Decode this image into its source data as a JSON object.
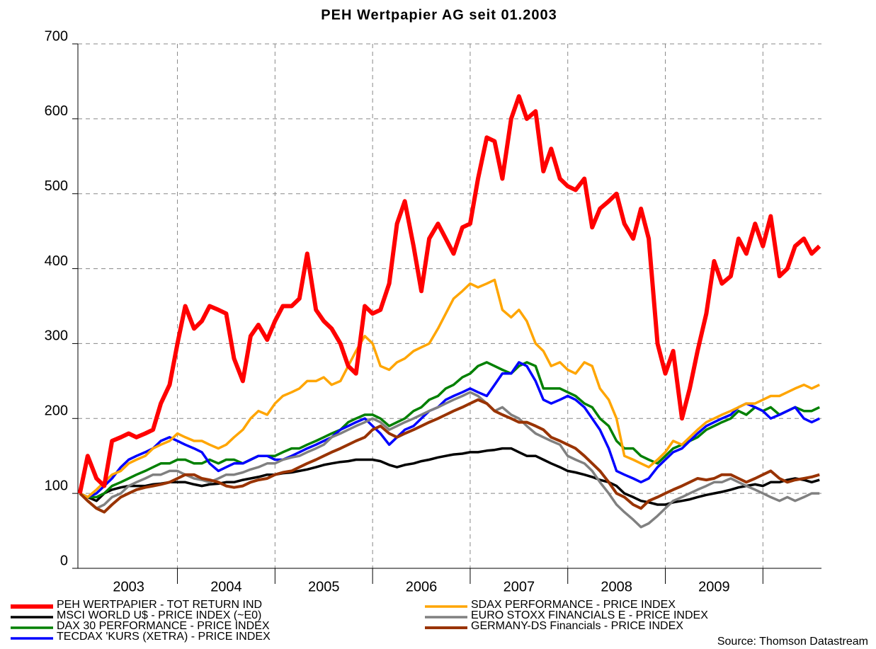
{
  "chart_data": {
    "type": "line",
    "title": "PEH Wertpapier AG seit 01.2003",
    "source": "Source: Thomson Datastream",
    "xlim": [
      2002.98,
      2010.6
    ],
    "xticks": [
      {
        "value": 2003.5,
        "label": "2003"
      },
      {
        "value": 2004.5,
        "label": "2004"
      },
      {
        "value": 2005.5,
        "label": "2005"
      },
      {
        "value": 2006.5,
        "label": "2006"
      },
      {
        "value": 2007.5,
        "label": "2007"
      },
      {
        "value": 2008.5,
        "label": "2008"
      },
      {
        "value": 2009.5,
        "label": "2009"
      }
    ],
    "xgrid": [
      2004,
      2005,
      2006,
      2007,
      2008,
      2009,
      2010
    ],
    "ylim": [
      0,
      700
    ],
    "yticks": [
      0,
      100,
      200,
      300,
      400,
      500,
      600,
      700
    ],
    "grid": true,
    "x": [
      2003,
      2003.08,
      2003.17,
      2003.25,
      2003.33,
      2003.42,
      2003.5,
      2003.58,
      2003.67,
      2003.75,
      2003.83,
      2003.92,
      2004,
      2004.08,
      2004.17,
      2004.25,
      2004.33,
      2004.42,
      2004.5,
      2004.58,
      2004.67,
      2004.75,
      2004.83,
      2004.92,
      2005,
      2005.08,
      2005.17,
      2005.25,
      2005.33,
      2005.42,
      2005.5,
      2005.58,
      2005.67,
      2005.75,
      2005.83,
      2005.92,
      2006,
      2006.08,
      2006.17,
      2006.25,
      2006.33,
      2006.42,
      2006.5,
      2006.58,
      2006.67,
      2006.75,
      2006.83,
      2006.92,
      2007,
      2007.08,
      2007.17,
      2007.25,
      2007.33,
      2007.42,
      2007.5,
      2007.58,
      2007.67,
      2007.75,
      2007.83,
      2007.92,
      2008,
      2008.08,
      2008.17,
      2008.25,
      2008.33,
      2008.42,
      2008.5,
      2008.58,
      2008.67,
      2008.75,
      2008.83,
      2008.92,
      2009,
      2009.08,
      2009.17,
      2009.25,
      2009.33,
      2009.42,
      2009.5,
      2009.58,
      2009.67,
      2009.75,
      2009.83,
      2009.92,
      2010,
      2010.08,
      2010.17,
      2010.25,
      2010.33,
      2010.42,
      2010.5,
      2010.58
    ],
    "series": [
      {
        "name": "PEH WERTPAPIER - TOT RETURN IND",
        "color": "#ff0000",
        "width": 6,
        "values": [
          100,
          150,
          120,
          110,
          170,
          175,
          180,
          175,
          180,
          185,
          220,
          245,
          300,
          350,
          320,
          330,
          350,
          345,
          340,
          280,
          250,
          310,
          325,
          305,
          330,
          350,
          350,
          360,
          420,
          345,
          330,
          320,
          300,
          270,
          260,
          350,
          340,
          345,
          380,
          460,
          490,
          430,
          370,
          440,
          460,
          440,
          420,
          455,
          460,
          520,
          575,
          570,
          520,
          600,
          630,
          600,
          610,
          530,
          560,
          520,
          510,
          505,
          520,
          455,
          480,
          490,
          500,
          460,
          440,
          480,
          440,
          300,
          260,
          290,
          200,
          240,
          290,
          340,
          410,
          380,
          390,
          440,
          420,
          460,
          430,
          470,
          390,
          400,
          430,
          440,
          420,
          430
        ]
      },
      {
        "name": "MSCI WORLD U$ - PRICE INDEX (~E0)",
        "color": "#000000",
        "width": 3.5,
        "values": [
          100,
          95,
          90,
          100,
          105,
          108,
          110,
          110,
          110,
          112,
          113,
          115,
          115,
          115,
          112,
          110,
          112,
          113,
          115,
          115,
          118,
          120,
          122,
          125,
          125,
          127,
          128,
          130,
          132,
          135,
          138,
          140,
          142,
          143,
          145,
          145,
          145,
          143,
          138,
          135,
          138,
          140,
          143,
          145,
          148,
          150,
          152,
          153,
          155,
          155,
          157,
          158,
          160,
          160,
          155,
          150,
          150,
          145,
          140,
          135,
          130,
          128,
          125,
          122,
          118,
          115,
          110,
          100,
          95,
          90,
          88,
          85,
          85,
          88,
          90,
          92,
          95,
          98,
          100,
          102,
          105,
          108,
          110,
          112,
          110,
          115,
          115,
          118,
          120,
          118,
          115,
          118
        ]
      },
      {
        "name": "DAX 30 PERFORMANCE - PRICE INDEX",
        "color": "#008000",
        "width": 3.5,
        "values": [
          100,
          95,
          95,
          100,
          110,
          115,
          120,
          125,
          130,
          135,
          140,
          140,
          145,
          145,
          140,
          140,
          145,
          140,
          145,
          145,
          140,
          145,
          150,
          150,
          150,
          155,
          160,
          160,
          165,
          170,
          175,
          180,
          185,
          195,
          200,
          205,
          205,
          200,
          190,
          195,
          200,
          210,
          215,
          225,
          230,
          240,
          245,
          255,
          260,
          270,
          275,
          270,
          265,
          260,
          270,
          275,
          270,
          240,
          240,
          240,
          235,
          230,
          220,
          215,
          200,
          190,
          170,
          160,
          160,
          150,
          145,
          140,
          150,
          160,
          165,
          170,
          175,
          185,
          190,
          195,
          200,
          210,
          205,
          215,
          210,
          215,
          205,
          210,
          215,
          210,
          210,
          215
        ]
      },
      {
        "name": "TECDAX 'KURS (XETRA) - PRICE INDEX",
        "color": "#0000ff",
        "width": 3.5,
        "values": [
          100,
          95,
          100,
          110,
          120,
          135,
          145,
          150,
          155,
          160,
          170,
          175,
          170,
          165,
          160,
          155,
          140,
          130,
          135,
          140,
          140,
          145,
          150,
          150,
          145,
          145,
          150,
          155,
          160,
          165,
          170,
          175,
          185,
          190,
          195,
          200,
          190,
          180,
          165,
          175,
          185,
          190,
          200,
          210,
          215,
          225,
          230,
          235,
          240,
          235,
          230,
          245,
          260,
          260,
          275,
          270,
          250,
          225,
          220,
          225,
          230,
          225,
          215,
          200,
          185,
          160,
          130,
          125,
          120,
          115,
          120,
          135,
          145,
          155,
          160,
          170,
          180,
          190,
          195,
          200,
          205,
          215,
          220,
          215,
          210,
          200,
          205,
          210,
          215,
          200,
          195,
          200
        ]
      },
      {
        "name": "SDAX PERFORMANCE - PRICE INDEX",
        "color": "#ffa500",
        "width": 3.5,
        "values": [
          100,
          95,
          105,
          115,
          125,
          130,
          140,
          145,
          150,
          160,
          165,
          170,
          180,
          175,
          170,
          170,
          165,
          160,
          165,
          175,
          185,
          200,
          210,
          205,
          220,
          230,
          235,
          240,
          250,
          250,
          255,
          245,
          250,
          270,
          290,
          310,
          300,
          270,
          265,
          275,
          280,
          290,
          295,
          300,
          320,
          340,
          360,
          370,
          380,
          375,
          380,
          385,
          345,
          335,
          345,
          330,
          300,
          290,
          270,
          275,
          265,
          260,
          275,
          270,
          240,
          225,
          200,
          150,
          145,
          140,
          135,
          145,
          155,
          170,
          165,
          175,
          185,
          195,
          200,
          205,
          210,
          215,
          220,
          220,
          225,
          230,
          230,
          235,
          240,
          245,
          240,
          245
        ]
      },
      {
        "name": "EURO STOXX FINANCIALS E - PRICE INDEX",
        "color": "#808080",
        "width": 3.5,
        "values": [
          100,
          90,
          80,
          85,
          95,
          100,
          110,
          115,
          120,
          125,
          125,
          130,
          130,
          125,
          120,
          118,
          115,
          120,
          125,
          125,
          128,
          132,
          135,
          140,
          140,
          145,
          148,
          150,
          155,
          160,
          165,
          175,
          180,
          185,
          190,
          195,
          200,
          195,
          185,
          190,
          195,
          200,
          205,
          210,
          215,
          220,
          225,
          230,
          235,
          230,
          220,
          210,
          215,
          205,
          200,
          190,
          180,
          175,
          170,
          165,
          150,
          145,
          140,
          130,
          115,
          100,
          85,
          75,
          65,
          55,
          60,
          70,
          80,
          90,
          95,
          100,
          105,
          110,
          115,
          115,
          120,
          115,
          110,
          105,
          100,
          95,
          90,
          95,
          90,
          95,
          100,
          100
        ]
      },
      {
        "name": "GERMANY-DS Financials - PRICE INDEX",
        "color": "#993300",
        "width": 4,
        "values": [
          100,
          90,
          80,
          75,
          85,
          95,
          100,
          105,
          108,
          110,
          112,
          115,
          120,
          125,
          125,
          120,
          118,
          115,
          110,
          108,
          110,
          115,
          118,
          120,
          125,
          128,
          130,
          135,
          140,
          145,
          150,
          155,
          160,
          165,
          170,
          175,
          185,
          190,
          180,
          175,
          180,
          185,
          190,
          195,
          200,
          205,
          210,
          215,
          220,
          225,
          220,
          210,
          205,
          200,
          195,
          195,
          190,
          185,
          175,
          170,
          165,
          160,
          150,
          140,
          130,
          115,
          100,
          95,
          85,
          80,
          90,
          95,
          100,
          105,
          110,
          115,
          120,
          118,
          120,
          125,
          125,
          120,
          115,
          120,
          125,
          130,
          120,
          115,
          118,
          120,
          122,
          125
        ]
      }
    ]
  }
}
